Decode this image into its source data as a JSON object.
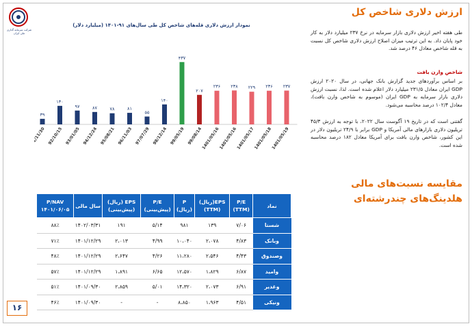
{
  "header": {
    "title": "ارزش دلاری شاخص کل",
    "logo_text": "شرکت سرمایه گذاری ملی ایران"
  },
  "intro_text": "طی هفته اخیر ارزش دلاری بازار سرمایه در نرخ ۲۳۷ میلیارد دلار به کار خود پایان داد. به این ترتیب میزان اصلاح ارزش دلاری شاخص کل نسبت به قله شاخص معادل ۴۶ درصد شد.",
  "subheading": "شاخص وارن بافت",
  "body_text_1": "بر اساس برآوردهای جدید گزارش بانک جهانی، در سال ۲۰۲۰ ارزش GDP ایران معادل ۲۳۱/۵ میلیارد دلار اعلام شده است. لذا، نسبت ارزش دلاری بازار سرمایه به GDP ایران (موسوم به شاخص وارن بافت)، معادل ۱۰۲/۴ درصد محاسبه می‌شود.",
  "body_text_2": "گفتنی است که در تاریخ ۱۹ آگوست سال ۲۰۲۲، با توجه به ارزش ۴۵/۳ تریلیون دلاری بازارهای مالی آمریکا و GDP برابر با ۲۴/۹ تریلیون دلار در این کشور، شاخص وارن بافت برای آمریکا معادل ۱۸۲ درصد محاسبه شده است.",
  "section2_title": "مقایسه نسبت‌های مالی هلدینگ‌های چندرشته‌ای",
  "page_number": "۱۶",
  "colors": {
    "accent": "#e36c09",
    "navy": "#1f3b73",
    "blue_header": "#1565c0",
    "green": "#2e9e4a",
    "dark_red": "#b22222",
    "light_red": "#e8636b"
  },
  "chart_data": {
    "type": "bar",
    "title": "نمودار ارزش دلاری قله‌های شاخص کل طی سال‌های ۹۱-۱۴۰۱ (میلیارد دلار)",
    "categories": [
      "91/11/30",
      "92/10/15",
      "93/01/05",
      "94/12/24",
      "95/08/21",
      "96/11/03",
      "97/07/29",
      "98/12/14",
      "99/05/19",
      "99/08/14",
      "1401/05/16",
      "1401/05/16",
      "1401/05/17",
      "1401/05/18",
      "1401/05/19"
    ],
    "values": [
      39,
      130,
      97,
      87,
      78,
      81,
      55,
      140,
      437,
      207,
      236,
      238,
      229,
      236,
      237
    ],
    "labels": [
      "۳۹",
      "۱۳۰",
      "۹۷",
      "۸۷",
      "۷۸",
      "۸۱",
      "۵۵",
      "۱۴۰",
      "۴۳۷",
      "۲۰۷",
      "۲۳۶",
      "۲۳۸",
      "۲۲۹",
      "۲۳۶",
      "۲۳۷"
    ],
    "groups": [
      "navy",
      "navy",
      "navy",
      "navy",
      "navy",
      "navy",
      "navy",
      "navy",
      "green",
      "dark_red",
      "light_red",
      "light_red",
      "light_red",
      "light_red",
      "light_red"
    ],
    "ylim": [
      0,
      460
    ],
    "grid": false
  },
  "table": {
    "headers": [
      "نماد",
      "P/E (TTM)",
      "EPS(ریال) (TTM)",
      "P (ریال)",
      "P/E (پیش‌بینی)",
      "EPS (ریال) (پیش‌بینی)",
      "سال مالی",
      "P/NAV ۱۴۰۱/۰۶/۰۵"
    ],
    "rows": [
      [
        "شستا",
        "۷/۰۶",
        "۱۳۹",
        "۹۸۱",
        "۵/۱۴",
        "۱۹۱",
        "۱۴۰۲/۰۳/۳۱",
        "۸۸٪"
      ],
      [
        "وبانک",
        "۴/۸۳",
        "۲،۰۷۸",
        "۱۰،۰۴۰",
        "۴/۹۹",
        "۲،۰۱۳",
        "۱۴۰۱/۱۲/۲۹",
        "۷۱٪"
      ],
      [
        "وصندوق",
        "۴/۴۳",
        "۲،۵۴۶",
        "۱۱،۲۸۰",
        "۴/۲۶",
        "۲،۶۴۷",
        "۱۴۰۱/۱۲/۲۹",
        "۴۸٪"
      ],
      [
        "وامید",
        "۶/۸۷",
        "۱،۸۲۹",
        "۱۲،۵۷۰",
        "۶/۶۵",
        "۱،۸۹۱",
        "۱۴۰۱/۱۲/۲۹",
        "۵۷٪"
      ],
      [
        "وغدیر",
        "۶/۹۱",
        "۲،۰۷۳",
        "۱۴،۳۲۰",
        "۵/۰۱",
        "۲،۸۵۹",
        "۱۴۰۱/۰۹/۳۰",
        "۵۱٪"
      ],
      [
        "ونیکی",
        "۴/۵۱",
        "۱،۹۶۳",
        "۸،۸۵۰",
        "-",
        "-",
        "۱۴۰۱/۰۹/۳۰",
        "۴۶٪"
      ]
    ]
  }
}
